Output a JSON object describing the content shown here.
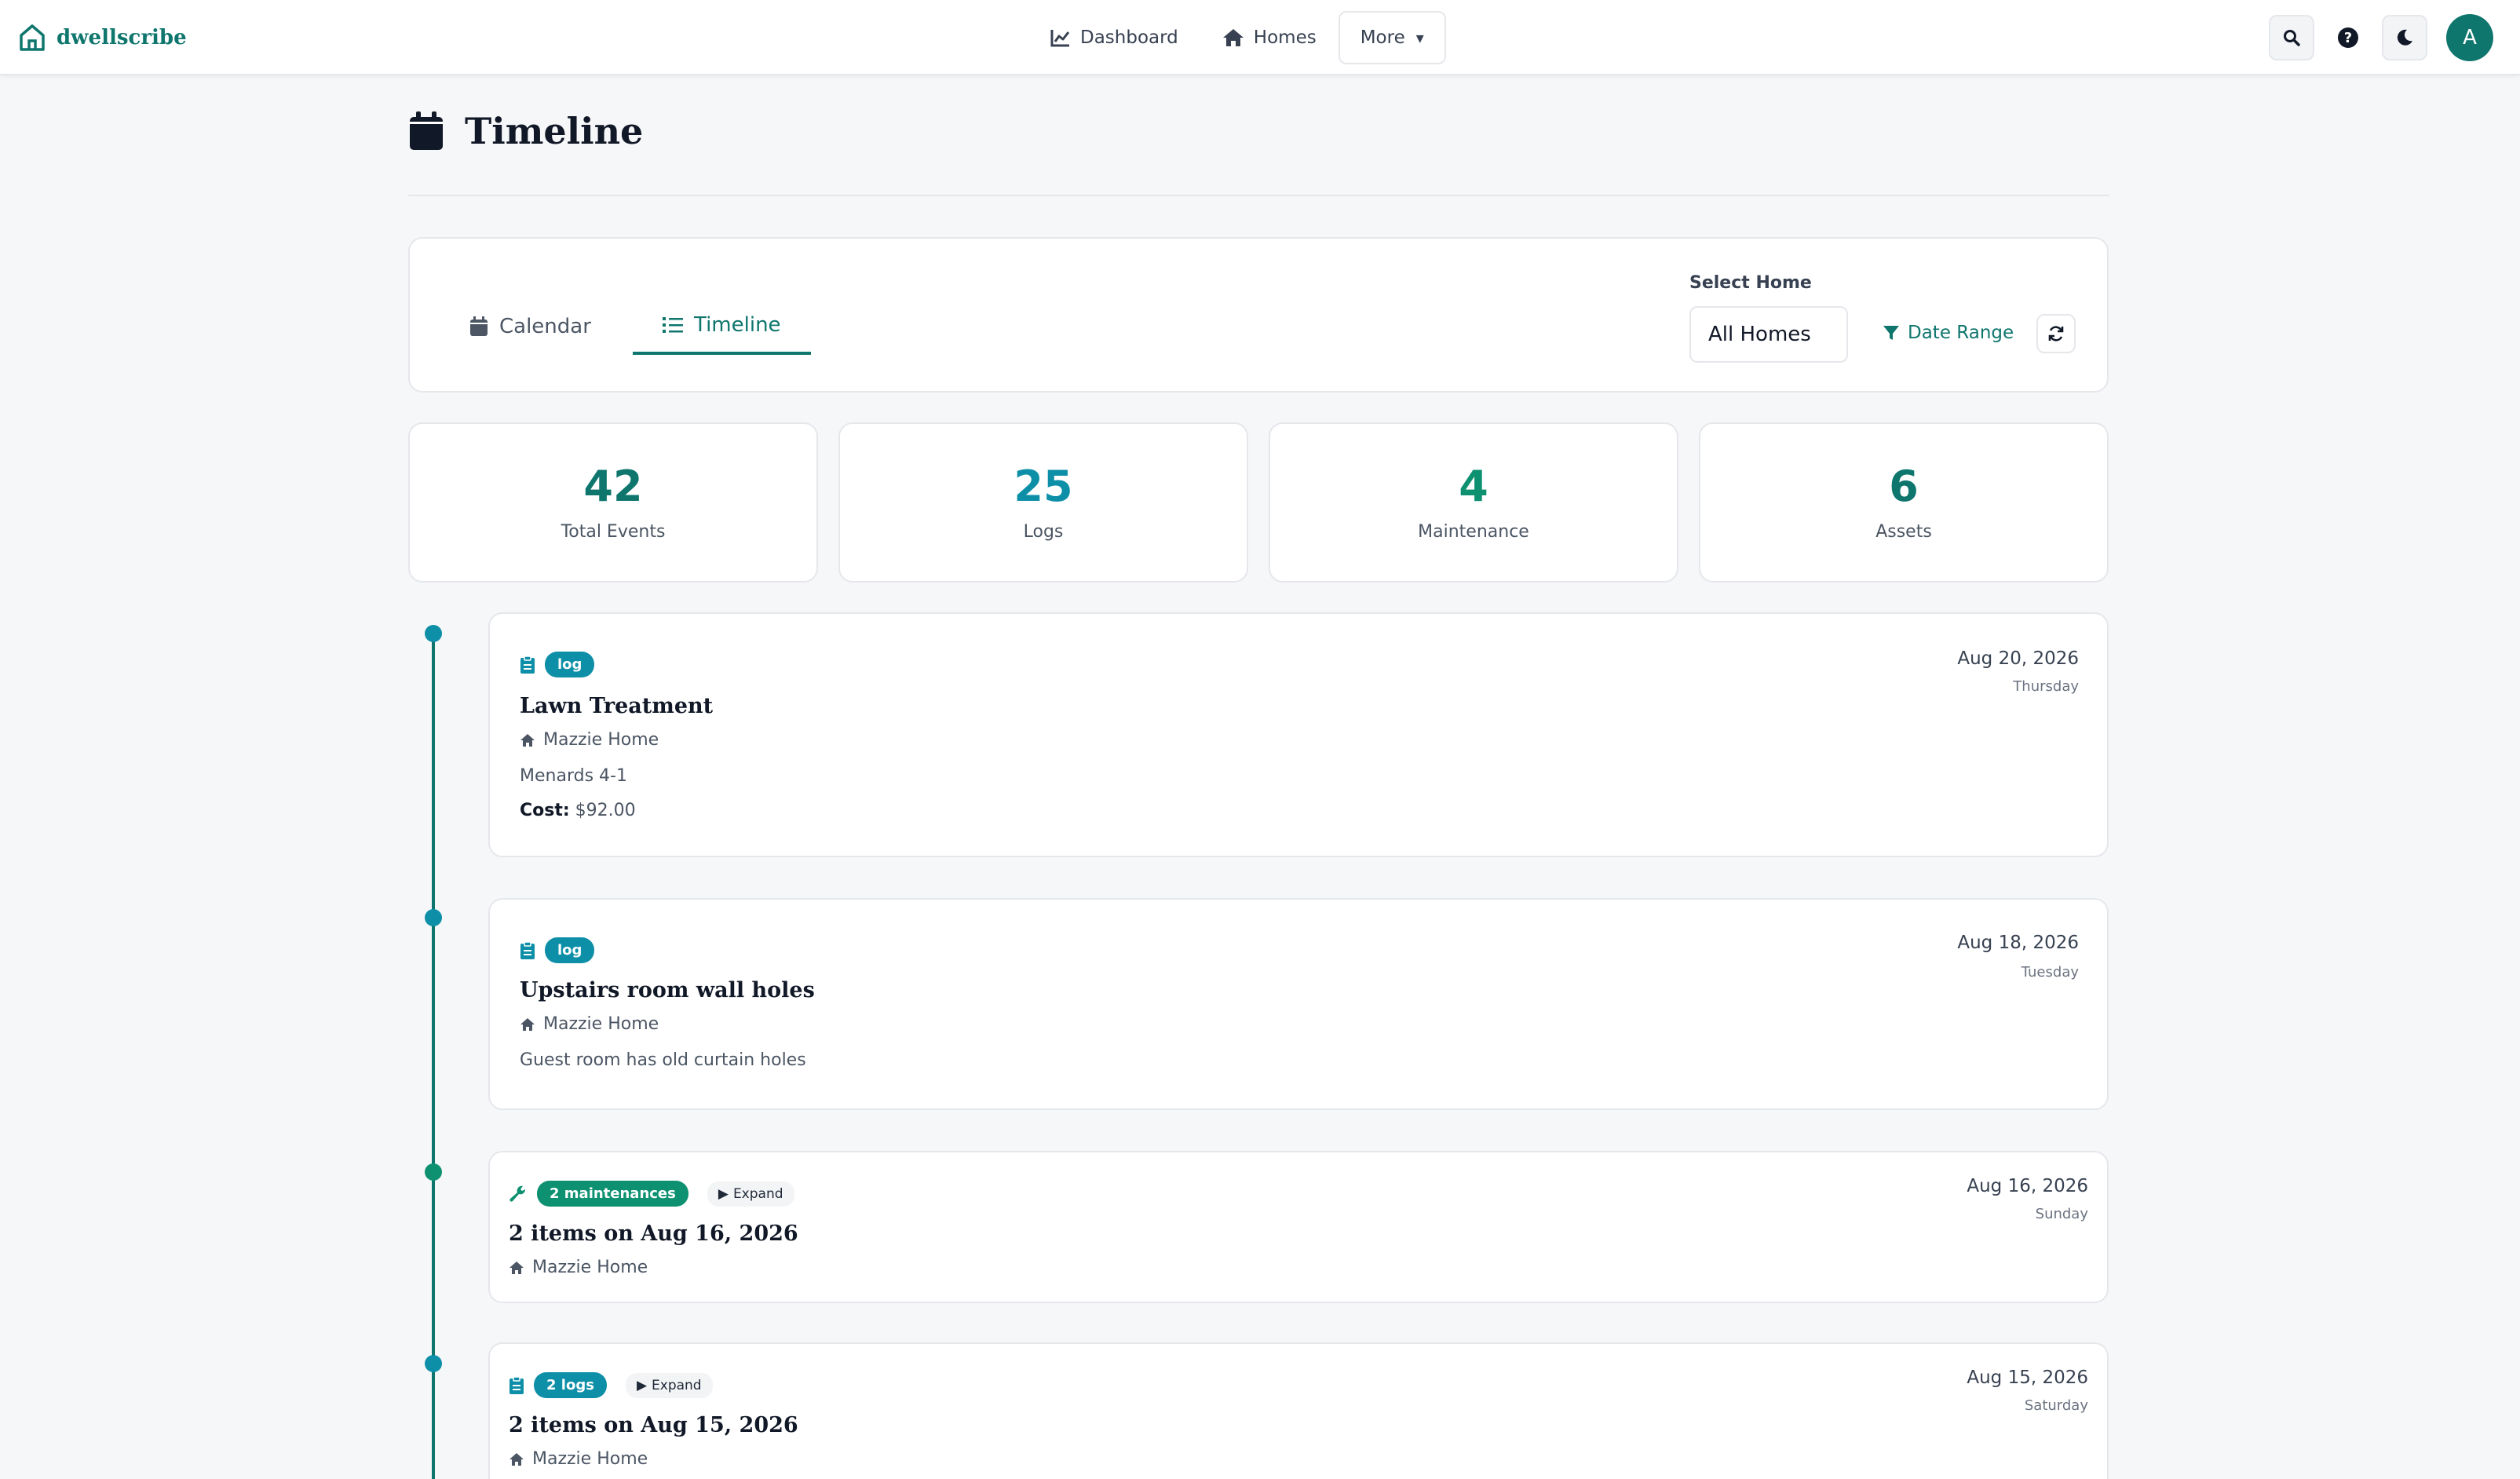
{
  "nav": {
    "brand": "dwellscribe",
    "links": [
      {
        "label": "Dashboard",
        "icon": "chart-line-icon"
      },
      {
        "label": "Homes",
        "icon": "home-icon"
      }
    ],
    "more_label": "More",
    "more_caret": "▾",
    "avatar_initial": "A"
  },
  "header": {
    "title": "Timeline"
  },
  "toolbar": {
    "tabs": [
      {
        "label": "Calendar",
        "active": false
      },
      {
        "label": "Timeline",
        "active": true
      }
    ],
    "select_label": "Select Home",
    "select_value": "All Homes",
    "date_range_label": "Date Range"
  },
  "stats": [
    {
      "value": "42",
      "label": "Total Events"
    },
    {
      "value": "25",
      "label": "Logs"
    },
    {
      "value": "4",
      "label": "Maintenance"
    },
    {
      "value": "6",
      "label": "Assets"
    }
  ],
  "events": [
    {
      "type": "log",
      "badge": "log",
      "title": "Lawn Treatment",
      "home": "Mazzie Home",
      "description": "Menards 4-1",
      "cost_label": "Cost:",
      "cost_value": "$92.00",
      "date": "Aug 20, 2026",
      "day": "Thursday"
    },
    {
      "type": "log",
      "badge": "log",
      "title": "Upstairs room wall holes",
      "home": "Mazzie Home",
      "description": "Guest room has old curtain holes",
      "date": "Aug 18, 2026",
      "day": "Tuesday"
    },
    {
      "type": "maintenance-group",
      "badge": "2 maintenances",
      "expand_label": "Expand",
      "title": "2 items on Aug 16, 2026",
      "home": "Mazzie Home",
      "date": "Aug 16, 2026",
      "day": "Sunday"
    },
    {
      "type": "log-group",
      "badge": "2 logs",
      "expand_label": "Expand",
      "title": "2 items on Aug 15, 2026",
      "home": "Mazzie Home",
      "date": "Aug 15, 2026",
      "day": "Saturday"
    }
  ],
  "colors": {
    "accent": "#0f766e",
    "log_badge": "#0e8fa8",
    "maintenance_badge": "#0d9170",
    "page_bg": "#f6f7f8"
  }
}
